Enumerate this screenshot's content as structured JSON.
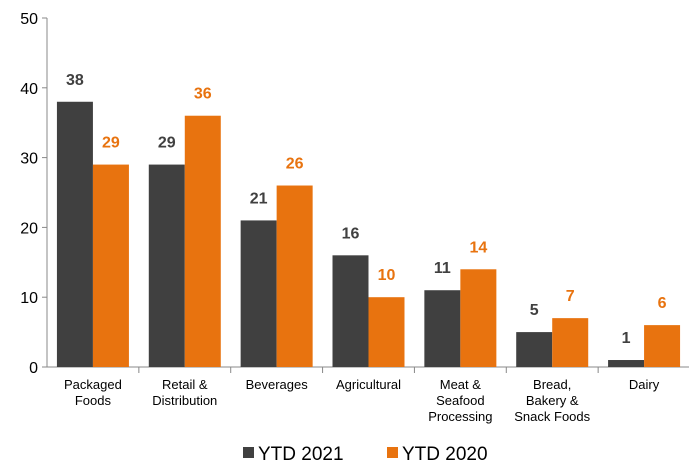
{
  "chart_data": {
    "type": "bar",
    "categories": [
      [
        "Packaged",
        "Foods"
      ],
      [
        "Retail &",
        "Distribution"
      ],
      [
        "Beverages"
      ],
      [
        "Agricultural"
      ],
      [
        "Meat &",
        "Seafood",
        "Processing"
      ],
      [
        "Bread,",
        "Bakery &",
        "Snack Foods"
      ],
      [
        "Dairy"
      ]
    ],
    "series": [
      {
        "name": "YTD 2021",
        "color": "#404040",
        "values": [
          38,
          29,
          21,
          16,
          11,
          5,
          1
        ]
      },
      {
        "name": "YTD 2020",
        "color": "#E8730F",
        "values": [
          29,
          36,
          26,
          10,
          14,
          7,
          6
        ]
      }
    ],
    "ylim": [
      0,
      50
    ],
    "yticks": [
      0,
      10,
      20,
      30,
      40,
      50
    ],
    "grid": false,
    "legend_position": "bottom-center"
  }
}
